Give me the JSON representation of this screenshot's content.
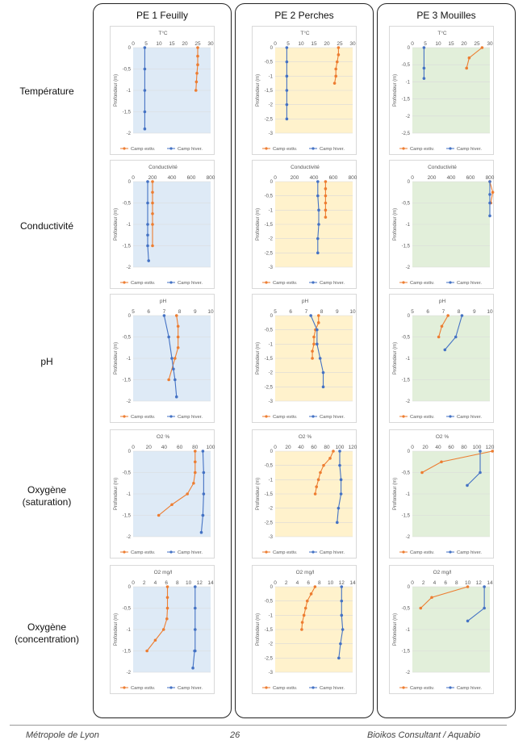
{
  "columns": [
    "PE 1 Feuilly",
    "PE 2 Perches",
    "PE 3 Mouilles"
  ],
  "rows": [
    "Température",
    "Conductivité",
    "pH",
    "Oxygène\n(saturation)",
    "Oxygène\n(concentration)"
  ],
  "footer": {
    "left": "Métropole de Lyon",
    "center": "26",
    "right": "Bioikos Consultant / Aquabio"
  },
  "colors": {
    "summer": "#ED7D31",
    "winter": "#4472C4",
    "bg_pe1": "#DEEAF6",
    "bg_pe2": "#FFF2CC",
    "bg_pe3": "#E2EFDA",
    "grid": "#D9D9D9",
    "text": "#595959"
  },
  "legend": {
    "summer": "Camp estiv.",
    "winter": "Camp hiver."
  },
  "ylabel": "Profondeur (m)",
  "chart_data": [
    {
      "type": "line",
      "column": "PE 1 Feuilly",
      "title": "T°C",
      "ylabel": "Profondeur (m)",
      "xlim": [
        0,
        30
      ],
      "xticks": [
        0,
        5,
        10,
        15,
        20,
        25,
        30
      ],
      "ylim": [
        -2,
        0
      ],
      "yticks": [
        0,
        -0.5,
        -1,
        -1.5,
        -2
      ],
      "series": [
        {
          "name": "Camp estiv.",
          "x": [
            25,
            25,
            25,
            24.7,
            24.5,
            24.3
          ],
          "y": [
            0,
            -0.2,
            -0.4,
            -0.6,
            -0.8,
            -1.0
          ]
        },
        {
          "name": "Camp hiver.",
          "x": [
            4.5,
            4.5,
            4.5,
            4.5,
            4.5
          ],
          "y": [
            0,
            -0.5,
            -1.0,
            -1.5,
            -1.9
          ]
        }
      ]
    },
    {
      "type": "line",
      "column": "PE 2 Perches",
      "title": "T°C",
      "ylabel": "Profondeur (m)",
      "xlim": [
        0,
        30
      ],
      "xticks": [
        0,
        5,
        10,
        15,
        20,
        25,
        30
      ],
      "ylim": [
        -3,
        0
      ],
      "yticks": [
        0,
        -0.5,
        -1,
        -1.5,
        -2,
        -2.5,
        -3
      ],
      "series": [
        {
          "name": "Camp estiv.",
          "x": [
            24.5,
            24.5,
            24,
            23.5,
            23.5,
            23
          ],
          "y": [
            0,
            -0.25,
            -0.5,
            -0.75,
            -1.0,
            -1.25
          ]
        },
        {
          "name": "Camp hiver.",
          "x": [
            4.5,
            4.5,
            4.5,
            4.5,
            4.5,
            4.5
          ],
          "y": [
            0,
            -0.5,
            -1.0,
            -1.5,
            -2.0,
            -2.5
          ]
        }
      ]
    },
    {
      "type": "line",
      "column": "PE 3 Mouilles",
      "title": "T°C",
      "ylabel": "Profondeur (m)",
      "xlim": [
        0,
        30
      ],
      "xticks": [
        0,
        5,
        10,
        15,
        20,
        25,
        30
      ],
      "ylim": [
        -2.5,
        0
      ],
      "yticks": [
        0,
        -0.5,
        -1,
        -1.5,
        -2,
        -2.5
      ],
      "series": [
        {
          "name": "Camp estiv.",
          "x": [
            27,
            22,
            21
          ],
          "y": [
            0,
            -0.3,
            -0.6
          ]
        },
        {
          "name": "Camp hiver.",
          "x": [
            4.5,
            4.5,
            4.5
          ],
          "y": [
            0,
            -0.6,
            -0.9
          ]
        }
      ]
    },
    {
      "type": "line",
      "column": "PE 1 Feuilly",
      "title": "Conductivité",
      "ylabel": "Profondeur (m)",
      "xlim": [
        0,
        800
      ],
      "xticks": [
        0,
        200,
        400,
        600,
        800
      ],
      "ylim": [
        -2,
        0
      ],
      "yticks": [
        0,
        -0.5,
        -1,
        -1.5,
        -2
      ],
      "series": [
        {
          "name": "Camp estiv.",
          "x": [
            200,
            200,
            200,
            200,
            200,
            200
          ],
          "y": [
            0,
            -0.25,
            -0.5,
            -0.75,
            -1.0,
            -1.5
          ]
        },
        {
          "name": "Camp hiver.",
          "x": [
            150,
            150,
            150,
            150,
            150,
            160
          ],
          "y": [
            0,
            -0.5,
            -1.0,
            -1.25,
            -1.5,
            -1.85
          ]
        }
      ]
    },
    {
      "type": "line",
      "column": "PE 2 Perches",
      "title": "Conductivité",
      "ylabel": "Profondeur (m)",
      "xlim": [
        0,
        800
      ],
      "xticks": [
        0,
        200,
        400,
        600,
        800
      ],
      "ylim": [
        -3,
        0
      ],
      "yticks": [
        0,
        -0.5,
        -1,
        -1.5,
        -2,
        -2.5,
        -3
      ],
      "series": [
        {
          "name": "Camp estiv.",
          "x": [
            520,
            520,
            520,
            520,
            520,
            520
          ],
          "y": [
            0,
            -0.25,
            -0.5,
            -0.75,
            -1.0,
            -1.25
          ]
        },
        {
          "name": "Camp hiver.",
          "x": [
            440,
            440,
            450,
            450,
            440,
            440
          ],
          "y": [
            0,
            -0.5,
            -1.0,
            -1.5,
            -2.0,
            -2.5
          ]
        }
      ]
    },
    {
      "type": "line",
      "column": "PE 3 Mouilles",
      "title": "Conductivité",
      "ylabel": "Profondeur (m)",
      "xlim": [
        0,
        800
      ],
      "xticks": [
        0,
        200,
        400,
        600,
        800
      ],
      "ylim": [
        -2,
        0
      ],
      "yticks": [
        0,
        -0.5,
        -1,
        -1.5,
        -2
      ],
      "series": [
        {
          "name": "Camp estiv.",
          "x": [
            800,
            830,
            810
          ],
          "y": [
            0,
            -0.25,
            -0.5
          ]
        },
        {
          "name": "Camp hiver.",
          "x": [
            800,
            800,
            800,
            800
          ],
          "y": [
            0,
            -0.3,
            -0.5,
            -0.8
          ]
        }
      ]
    },
    {
      "type": "line",
      "column": "PE 1 Feuilly",
      "title": "pH",
      "ylabel": "Profondeur (m)",
      "xlim": [
        5,
        10
      ],
      "xticks": [
        5,
        6,
        7,
        8,
        9,
        10
      ],
      "ylim": [
        -2,
        0
      ],
      "yticks": [
        0,
        -0.5,
        -1,
        -1.5,
        -2
      ],
      "series": [
        {
          "name": "Camp estiv.",
          "x": [
            7.8,
            7.9,
            7.9,
            7.9,
            7.7,
            7.3
          ],
          "y": [
            0,
            -0.25,
            -0.5,
            -0.75,
            -1.0,
            -1.5
          ]
        },
        {
          "name": "Camp hiver.",
          "x": [
            7,
            7.3,
            7.5,
            7.6,
            7.7,
            7.8
          ],
          "y": [
            0,
            -0.5,
            -1.0,
            -1.25,
            -1.5,
            -1.9
          ]
        }
      ]
    },
    {
      "type": "line",
      "column": "PE 2 Perches",
      "title": "pH",
      "ylabel": "Profondeur (m)",
      "xlim": [
        5,
        10
      ],
      "xticks": [
        5,
        6,
        7,
        8,
        9,
        10
      ],
      "ylim": [
        -3,
        0
      ],
      "yticks": [
        0,
        -0.5,
        -1,
        -1.5,
        -2,
        -2.5,
        -3
      ],
      "series": [
        {
          "name": "Camp estiv.",
          "x": [
            7.8,
            7.8,
            7.6,
            7.5,
            7.5,
            7.4,
            7.4
          ],
          "y": [
            0,
            -0.25,
            -0.5,
            -0.75,
            -1.0,
            -1.25,
            -1.5
          ]
        },
        {
          "name": "Camp hiver.",
          "x": [
            7.3,
            7.7,
            7.7,
            7.9,
            8.1,
            8.1
          ],
          "y": [
            0,
            -0.5,
            -1.0,
            -1.5,
            -2.0,
            -2.5
          ]
        }
      ]
    },
    {
      "type": "line",
      "column": "PE 3 Mouilles",
      "title": "pH",
      "ylabel": "Profondeur (m)",
      "xlim": [
        5,
        10
      ],
      "xticks": [
        5,
        6,
        7,
        8,
        9,
        10
      ],
      "ylim": [
        -2,
        0
      ],
      "yticks": [
        0,
        -0.5,
        -1,
        -1.5,
        -2
      ],
      "series": [
        {
          "name": "Camp estiv.",
          "x": [
            7.3,
            6.9,
            6.7
          ],
          "y": [
            0,
            -0.25,
            -0.5
          ]
        },
        {
          "name": "Camp hiver.",
          "x": [
            8.2,
            7.8,
            7.1
          ],
          "y": [
            0,
            -0.5,
            -0.8
          ]
        }
      ]
    },
    {
      "type": "line",
      "column": "PE 1 Feuilly",
      "title": "O2 %",
      "ylabel": "Profondeur (m)",
      "xlim": [
        0,
        100
      ],
      "xticks": [
        0,
        20,
        40,
        60,
        80,
        100
      ],
      "ylim": [
        -2,
        0
      ],
      "yticks": [
        0,
        -0.5,
        -1,
        -1.5,
        -2
      ],
      "series": [
        {
          "name": "Camp estiv.",
          "x": [
            80,
            80,
            80,
            78,
            70,
            50,
            33
          ],
          "y": [
            0,
            -0.25,
            -0.5,
            -0.75,
            -1.0,
            -1.25,
            -1.5
          ]
        },
        {
          "name": "Camp hiver.",
          "x": [
            90,
            91,
            91,
            90,
            90,
            88
          ],
          "y": [
            0,
            -0.5,
            -1.0,
            -1.5,
            -1.5,
            -1.9
          ]
        }
      ]
    },
    {
      "type": "line",
      "column": "PE 2 Perches",
      "title": "O2 %",
      "ylabel": "Profondeur (m)",
      "xlim": [
        0,
        120
      ],
      "xticks": [
        0,
        20,
        40,
        60,
        80,
        100,
        120
      ],
      "ylim": [
        -3,
        0
      ],
      "yticks": [
        0,
        -0.5,
        -1,
        -1.5,
        -2,
        -2.5,
        -3
      ],
      "series": [
        {
          "name": "Camp estiv.",
          "x": [
            90,
            85,
            75,
            70,
            67,
            64,
            62
          ],
          "y": [
            0,
            -0.25,
            -0.5,
            -0.75,
            -1.0,
            -1.25,
            -1.5
          ]
        },
        {
          "name": "Camp hiver.",
          "x": [
            100,
            100,
            102,
            102,
            98,
            96
          ],
          "y": [
            0,
            -0.5,
            -1.0,
            -1.5,
            -2.0,
            -2.5
          ]
        }
      ]
    },
    {
      "type": "line",
      "column": "PE 3 Mouilles",
      "title": "O2 %",
      "ylabel": "Profondeur (m)",
      "xlim": [
        0,
        120
      ],
      "xticks": [
        0,
        20,
        40,
        60,
        80,
        100,
        120
      ],
      "ylim": [
        -2,
        0
      ],
      "yticks": [
        0,
        -0.5,
        -1,
        -1.5,
        -2
      ],
      "series": [
        {
          "name": "Camp estiv.",
          "x": [
            124,
            45,
            15
          ],
          "y": [
            0,
            -0.25,
            -0.5
          ]
        },
        {
          "name": "Camp hiver.",
          "x": [
            105,
            105,
            85
          ],
          "y": [
            0,
            -0.5,
            -0.8
          ]
        }
      ]
    },
    {
      "type": "line",
      "column": "PE 1 Feuilly",
      "title": "O2 mg/l",
      "ylabel": "Profondeur (m)",
      "xlim": [
        0,
        14
      ],
      "xticks": [
        0,
        2,
        4,
        6,
        8,
        10,
        12,
        14
      ],
      "ylim": [
        -2,
        0
      ],
      "yticks": [
        0,
        -0.5,
        -1,
        -1.5,
        -2
      ],
      "series": [
        {
          "name": "Camp estiv.",
          "x": [
            6.2,
            6.2,
            6.2,
            6.1,
            5.5,
            4,
            2.5
          ],
          "y": [
            0,
            -0.25,
            -0.5,
            -0.75,
            -1.0,
            -1.25,
            -1.5
          ]
        },
        {
          "name": "Camp hiver.",
          "x": [
            11.2,
            11.2,
            11.2,
            11.2,
            11.1,
            10.8
          ],
          "y": [
            0,
            -0.5,
            -1.0,
            -1.5,
            -1.5,
            -1.9
          ]
        }
      ]
    },
    {
      "type": "line",
      "column": "PE 2 Perches",
      "title": "O2 mg/l",
      "ylabel": "Profondeur (m)",
      "xlim": [
        0,
        14
      ],
      "xticks": [
        0,
        2,
        4,
        6,
        8,
        10,
        12,
        14
      ],
      "ylim": [
        -3,
        0
      ],
      "yticks": [
        0,
        -0.5,
        -1,
        -1.5,
        -2,
        -2.5,
        -3
      ],
      "series": [
        {
          "name": "Camp estiv.",
          "x": [
            7.2,
            6.5,
            5.8,
            5.5,
            5.2,
            4.9,
            4.8
          ],
          "y": [
            0,
            -0.25,
            -0.5,
            -0.75,
            -1.0,
            -1.25,
            -1.5
          ]
        },
        {
          "name": "Camp hiver.",
          "x": [
            12,
            12,
            12,
            12.2,
            11.8,
            11.5
          ],
          "y": [
            0,
            -0.5,
            -1.0,
            -1.5,
            -2.0,
            -2.5
          ]
        }
      ]
    },
    {
      "type": "line",
      "column": "PE 3 Mouilles",
      "title": "O2 mg/l",
      "ylabel": "Profondeur (m)",
      "xlim": [
        0,
        14
      ],
      "xticks": [
        0,
        2,
        4,
        6,
        8,
        10,
        12,
        14
      ],
      "ylim": [
        -2,
        0
      ],
      "yticks": [
        0,
        -0.5,
        -1,
        -1.5,
        -2
      ],
      "series": [
        {
          "name": "Camp estiv.",
          "x": [
            10,
            3.5,
            1.5
          ],
          "y": [
            0,
            -0.25,
            -0.5
          ]
        },
        {
          "name": "Camp hiver.",
          "x": [
            13,
            13,
            10
          ],
          "y": [
            0,
            -0.5,
            -0.8
          ]
        }
      ]
    }
  ]
}
